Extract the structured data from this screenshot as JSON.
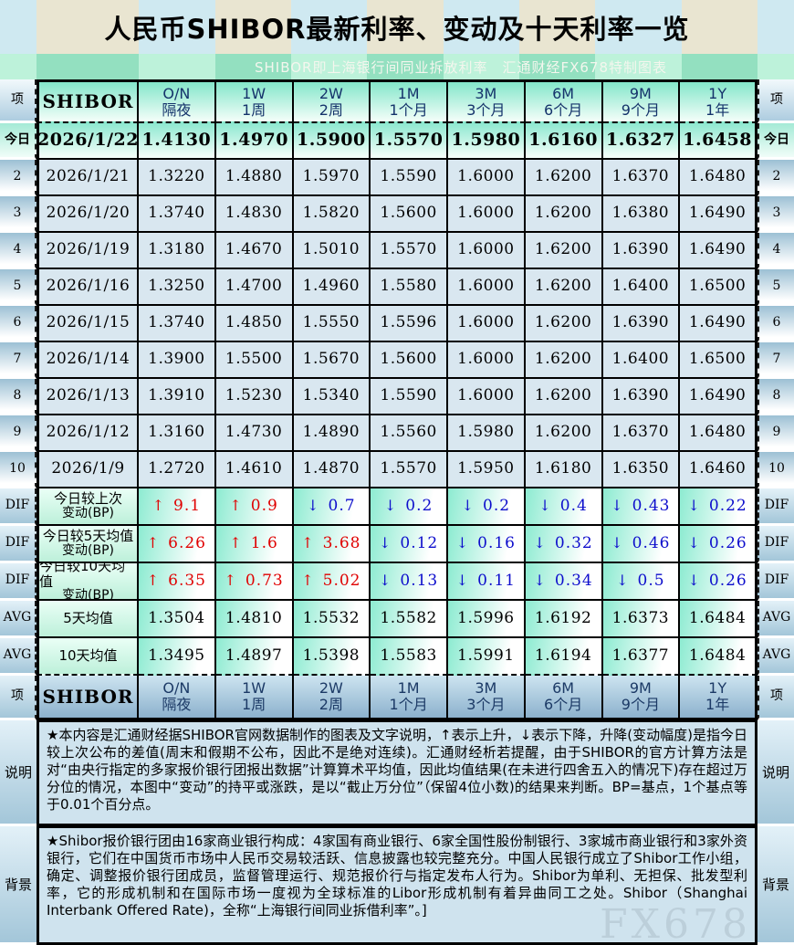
{
  "title": "人民币SHIBOR最新利率、变动及十天利率一览",
  "subtitle": "SHIBOR即上海银行间同业拆放利率　汇通财经FX678特制图表",
  "watermark": "FX678",
  "colors": {
    "up_red": "#e00000",
    "down_blue": "#0d0dcc",
    "today_green": "#8ee8d0",
    "row_blue": "#d9e7f0"
  },
  "table": {
    "corner_label": "项",
    "shibor_label": "SHIBOR",
    "arrows": {
      "up": "↑",
      "down": "↓"
    },
    "periods": [
      {
        "code": "O/N",
        "name": "隔夜"
      },
      {
        "code": "1W",
        "name": "1周"
      },
      {
        "code": "2W",
        "name": "2周"
      },
      {
        "code": "1M",
        "name": "1个月"
      },
      {
        "code": "3M",
        "name": "3个月"
      },
      {
        "code": "6M",
        "name": "6个月"
      },
      {
        "code": "9M",
        "name": "9个月"
      },
      {
        "code": "1Y",
        "name": "1年"
      }
    ],
    "daily_rows": [
      {
        "index": "今日",
        "date": "2026/1/22",
        "is_today": true,
        "rates": [
          "1.4130",
          "1.4970",
          "1.5900",
          "1.5570",
          "1.5980",
          "1.6160",
          "1.6327",
          "1.6458"
        ]
      },
      {
        "index": "2",
        "date": "2026/1/21",
        "rates": [
          "1.3220",
          "1.4880",
          "1.5970",
          "1.5590",
          "1.6000",
          "1.6200",
          "1.6370",
          "1.6480"
        ]
      },
      {
        "index": "3",
        "date": "2026/1/20",
        "rates": [
          "1.3740",
          "1.4830",
          "1.5820",
          "1.5600",
          "1.6000",
          "1.6200",
          "1.6380",
          "1.6490"
        ]
      },
      {
        "index": "4",
        "date": "2026/1/19",
        "rates": [
          "1.3180",
          "1.4670",
          "1.5010",
          "1.5570",
          "1.6000",
          "1.6200",
          "1.6390",
          "1.6490"
        ]
      },
      {
        "index": "5",
        "date": "2026/1/16",
        "rates": [
          "1.3250",
          "1.4700",
          "1.4960",
          "1.5580",
          "1.6000",
          "1.6200",
          "1.6400",
          "1.6500"
        ]
      },
      {
        "index": "6",
        "date": "2026/1/15",
        "rates": [
          "1.3740",
          "1.4850",
          "1.5550",
          "1.5596",
          "1.6000",
          "1.6200",
          "1.6390",
          "1.6490"
        ]
      },
      {
        "index": "7",
        "date": "2026/1/14",
        "rates": [
          "1.3900",
          "1.5500",
          "1.5670",
          "1.5600",
          "1.6000",
          "1.6200",
          "1.6400",
          "1.6500"
        ]
      },
      {
        "index": "8",
        "date": "2026/1/13",
        "rates": [
          "1.3910",
          "1.5230",
          "1.5340",
          "1.5590",
          "1.6000",
          "1.6200",
          "1.6390",
          "1.6490"
        ]
      },
      {
        "index": "9",
        "date": "2026/1/12",
        "rates": [
          "1.3160",
          "1.4730",
          "1.4890",
          "1.5560",
          "1.5980",
          "1.6200",
          "1.6370",
          "1.6480"
        ]
      },
      {
        "index": "10",
        "date": "2026/1/9",
        "rates": [
          "1.2720",
          "1.4610",
          "1.4870",
          "1.5570",
          "1.5950",
          "1.6180",
          "1.6350",
          "1.6460"
        ]
      }
    ],
    "dif_rows": [
      {
        "index": "DIF",
        "label_line1": "今日较上次",
        "label_line2": "变动(BP)",
        "changes": [
          {
            "dir": "up",
            "value": "9.1"
          },
          {
            "dir": "up",
            "value": "0.9"
          },
          {
            "dir": "down",
            "value": "0.7"
          },
          {
            "dir": "down",
            "value": "0.2"
          },
          {
            "dir": "down",
            "value": "0.2"
          },
          {
            "dir": "down",
            "value": "0.4"
          },
          {
            "dir": "down",
            "value": "0.43"
          },
          {
            "dir": "down",
            "value": "0.22"
          }
        ]
      },
      {
        "index": "DIF",
        "label_line1": "今日较5天均值",
        "label_line2": "变动(BP)",
        "changes": [
          {
            "dir": "up",
            "value": "6.26"
          },
          {
            "dir": "up",
            "value": "1.6"
          },
          {
            "dir": "up",
            "value": "3.68"
          },
          {
            "dir": "down",
            "value": "0.12"
          },
          {
            "dir": "down",
            "value": "0.16"
          },
          {
            "dir": "down",
            "value": "0.32"
          },
          {
            "dir": "down",
            "value": "0.46"
          },
          {
            "dir": "down",
            "value": "0.26"
          }
        ]
      },
      {
        "index": "DIF",
        "label_line1": "今日较10天均值",
        "label_line2": "变动(BP)",
        "changes": [
          {
            "dir": "up",
            "value": "6.35"
          },
          {
            "dir": "up",
            "value": "0.73"
          },
          {
            "dir": "up",
            "value": "5.02"
          },
          {
            "dir": "down",
            "value": "0.13"
          },
          {
            "dir": "down",
            "value": "0.11"
          },
          {
            "dir": "down",
            "value": "0.34"
          },
          {
            "dir": "down",
            "value": "0.5"
          },
          {
            "dir": "down",
            "value": "0.26"
          }
        ]
      }
    ],
    "avg_rows": [
      {
        "index": "AVG",
        "label": "5天均值",
        "rates": [
          "1.3504",
          "1.4810",
          "1.5532",
          "1.5582",
          "1.5996",
          "1.6192",
          "1.6373",
          "1.6484"
        ]
      },
      {
        "index": "AVG",
        "label": "10天均值",
        "rates": [
          "1.3495",
          "1.4897",
          "1.5398",
          "1.5583",
          "1.5991",
          "1.6194",
          "1.6377",
          "1.6484"
        ]
      }
    ]
  },
  "notes": {
    "explain": {
      "side_label": "说明",
      "text": "★本内容是汇通财经据SHIBOR官网数据制作的图表及文字说明，↑表示上升，↓表示下降，升降(变动幅度)是指今日较上次公布的差值(周末和假期不公布，因此不是绝对连续)。汇通财经析若提醒，由于SHIBOR的官方计算方法是对“由央行指定的多家报价银行团报出数据”计算算术平均值，因此均值结果(在未进行四舍五入的情况下)存在超过万分位的情况，本图中“变动”的持平或涨跌，是以“截止万分位”（保留4位小数)的结果来判断。BP=基点，1个基点等于0.01个百分点。"
    },
    "background": {
      "side_label": "背景",
      "text": "★Shibor报价银行团由16家商业银行构成：4家国有商业银行、6家全国性股份制银行、3家城市商业银行和3家外资银行，它们在中国货币市场中人民币交易较活跃、信息披露也较完整充分。中国人民银行成立了Shibor工作小组，确定、调整报价银行团成员，监督管理运行、规范报价行与指定发布人行为。Shibor为单利、无担保、批发型利率，它的形成机制和在国际市场一度视为全球标准的Libor形成机制有着异曲同工之处。Shibor（Shanghai Interbank Offered Rate)，全称“上海银行间同业拆借利率”。]"
    }
  },
  "chart_data": {
    "type": "table",
    "title": "人民币SHIBOR最新利率、变动及十天利率一览",
    "columns": [
      "SHIBOR",
      "O/N 隔夜",
      "1W 1周",
      "2W 2周",
      "1M 1个月",
      "3M 3个月",
      "6M 6个月",
      "9M 9个月",
      "1Y 1年"
    ],
    "rows": [
      [
        "2026/1/22",
        1.413,
        1.497,
        1.59,
        1.557,
        1.598,
        1.616,
        1.6327,
        1.6458
      ],
      [
        "2026/1/21",
        1.322,
        1.488,
        1.597,
        1.559,
        1.6,
        1.62,
        1.637,
        1.648
      ],
      [
        "2026/1/20",
        1.374,
        1.483,
        1.582,
        1.56,
        1.6,
        1.62,
        1.638,
        1.649
      ],
      [
        "2026/1/19",
        1.318,
        1.467,
        1.501,
        1.557,
        1.6,
        1.62,
        1.639,
        1.649
      ],
      [
        "2026/1/16",
        1.325,
        1.47,
        1.496,
        1.558,
        1.6,
        1.62,
        1.64,
        1.65
      ],
      [
        "2026/1/15",
        1.374,
        1.485,
        1.555,
        1.5596,
        1.6,
        1.62,
        1.639,
        1.649
      ],
      [
        "2026/1/14",
        1.39,
        1.55,
        1.567,
        1.56,
        1.6,
        1.62,
        1.64,
        1.65
      ],
      [
        "2026/1/13",
        1.391,
        1.523,
        1.534,
        1.559,
        1.6,
        1.62,
        1.639,
        1.649
      ],
      [
        "2026/1/12",
        1.316,
        1.473,
        1.489,
        1.556,
        1.598,
        1.62,
        1.637,
        1.648
      ],
      [
        "2026/1/9",
        1.272,
        1.461,
        1.487,
        1.557,
        1.595,
        1.618,
        1.635,
        1.646
      ]
    ],
    "diff_vs_previous_bp": [
      9.1,
      0.9,
      -0.7,
      -0.2,
      -0.2,
      -0.4,
      -0.43,
      -0.22
    ],
    "diff_vs_5day_avg_bp": [
      6.26,
      1.6,
      3.68,
      -0.12,
      -0.16,
      -0.32,
      -0.46,
      -0.26
    ],
    "diff_vs_10day_avg_bp": [
      6.35,
      0.73,
      5.02,
      -0.13,
      -0.11,
      -0.34,
      -0.5,
      -0.26
    ],
    "avg_5day": [
      1.3504,
      1.481,
      1.5532,
      1.5582,
      1.5996,
      1.6192,
      1.6373,
      1.6484
    ],
    "avg_10day": [
      1.3495,
      1.4897,
      1.5398,
      1.5583,
      1.5991,
      1.6194,
      1.6377,
      1.6484
    ]
  }
}
